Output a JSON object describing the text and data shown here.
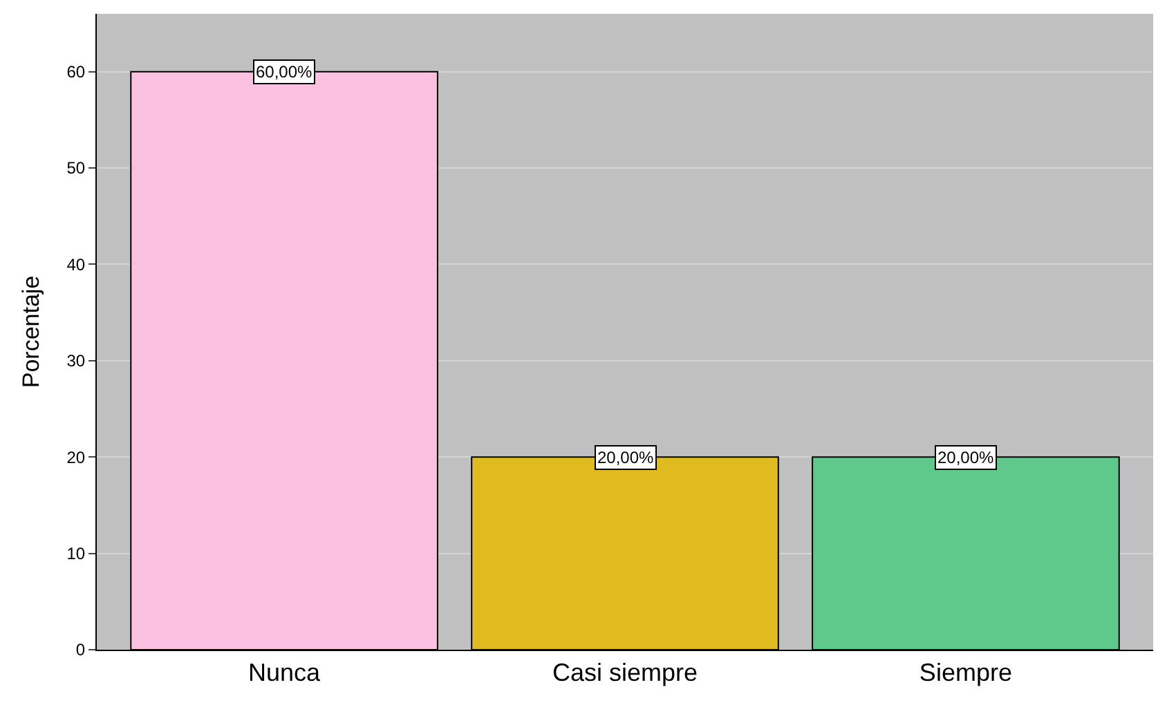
{
  "chart_data": {
    "type": "bar",
    "ylabel": "Porcentaje",
    "categories": [
      "Nunca",
      "Casi siempre",
      "Siempre"
    ],
    "values": [
      60,
      20,
      20
    ],
    "colors": [
      "#fcc0e0",
      "#e0bb20",
      "#5ec98a"
    ],
    "value_labels": [
      "60,00%",
      "20,00%",
      "20,00%"
    ],
    "ylim": [
      0,
      66
    ],
    "yticks": [
      0,
      10,
      20,
      30,
      40,
      50,
      60
    ],
    "grid": "y",
    "legend": false
  }
}
